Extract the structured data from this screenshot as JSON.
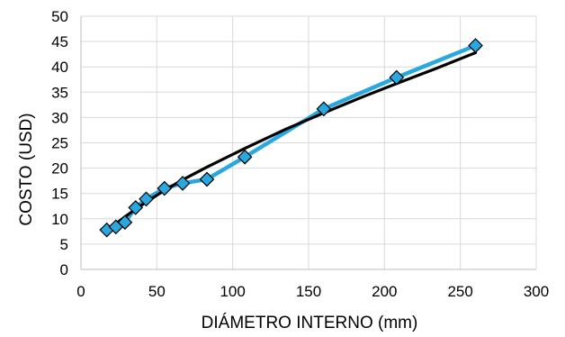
{
  "chart_data": {
    "type": "line",
    "title": "",
    "xlabel": "DIÁMETRO INTERNO (mm)",
    "ylabel": "COSTO (USD)",
    "xlim": [
      0,
      300
    ],
    "ylim": [
      0,
      50
    ],
    "x_ticks": [
      0,
      50,
      100,
      150,
      200,
      250,
      300
    ],
    "y_ticks": [
      0,
      5,
      10,
      15,
      20,
      25,
      30,
      35,
      40,
      45,
      50
    ],
    "grid": true,
    "legend": "none",
    "series": [
      {
        "marker": "diamond",
        "color": "#29A8E0",
        "x": [
          17,
          23,
          29,
          36,
          43,
          55,
          67,
          83,
          108,
          160,
          208,
          260
        ],
        "y": [
          7.8,
          8.4,
          9.3,
          12.2,
          13.9,
          16.0,
          17.0,
          17.8,
          22.2,
          31.7,
          37.9,
          44.2
        ]
      },
      {
        "marker": "none",
        "color": "#000000",
        "x": [
          17,
          23,
          29,
          36,
          43,
          55,
          67,
          83,
          108,
          135,
          160,
          185,
          208,
          235,
          260
        ],
        "y": [
          7.6,
          9.0,
          10.4,
          11.9,
          13.3,
          15.6,
          17.7,
          20.2,
          23.9,
          27.7,
          30.9,
          34.0,
          36.7,
          39.8,
          42.8
        ]
      }
    ]
  }
}
